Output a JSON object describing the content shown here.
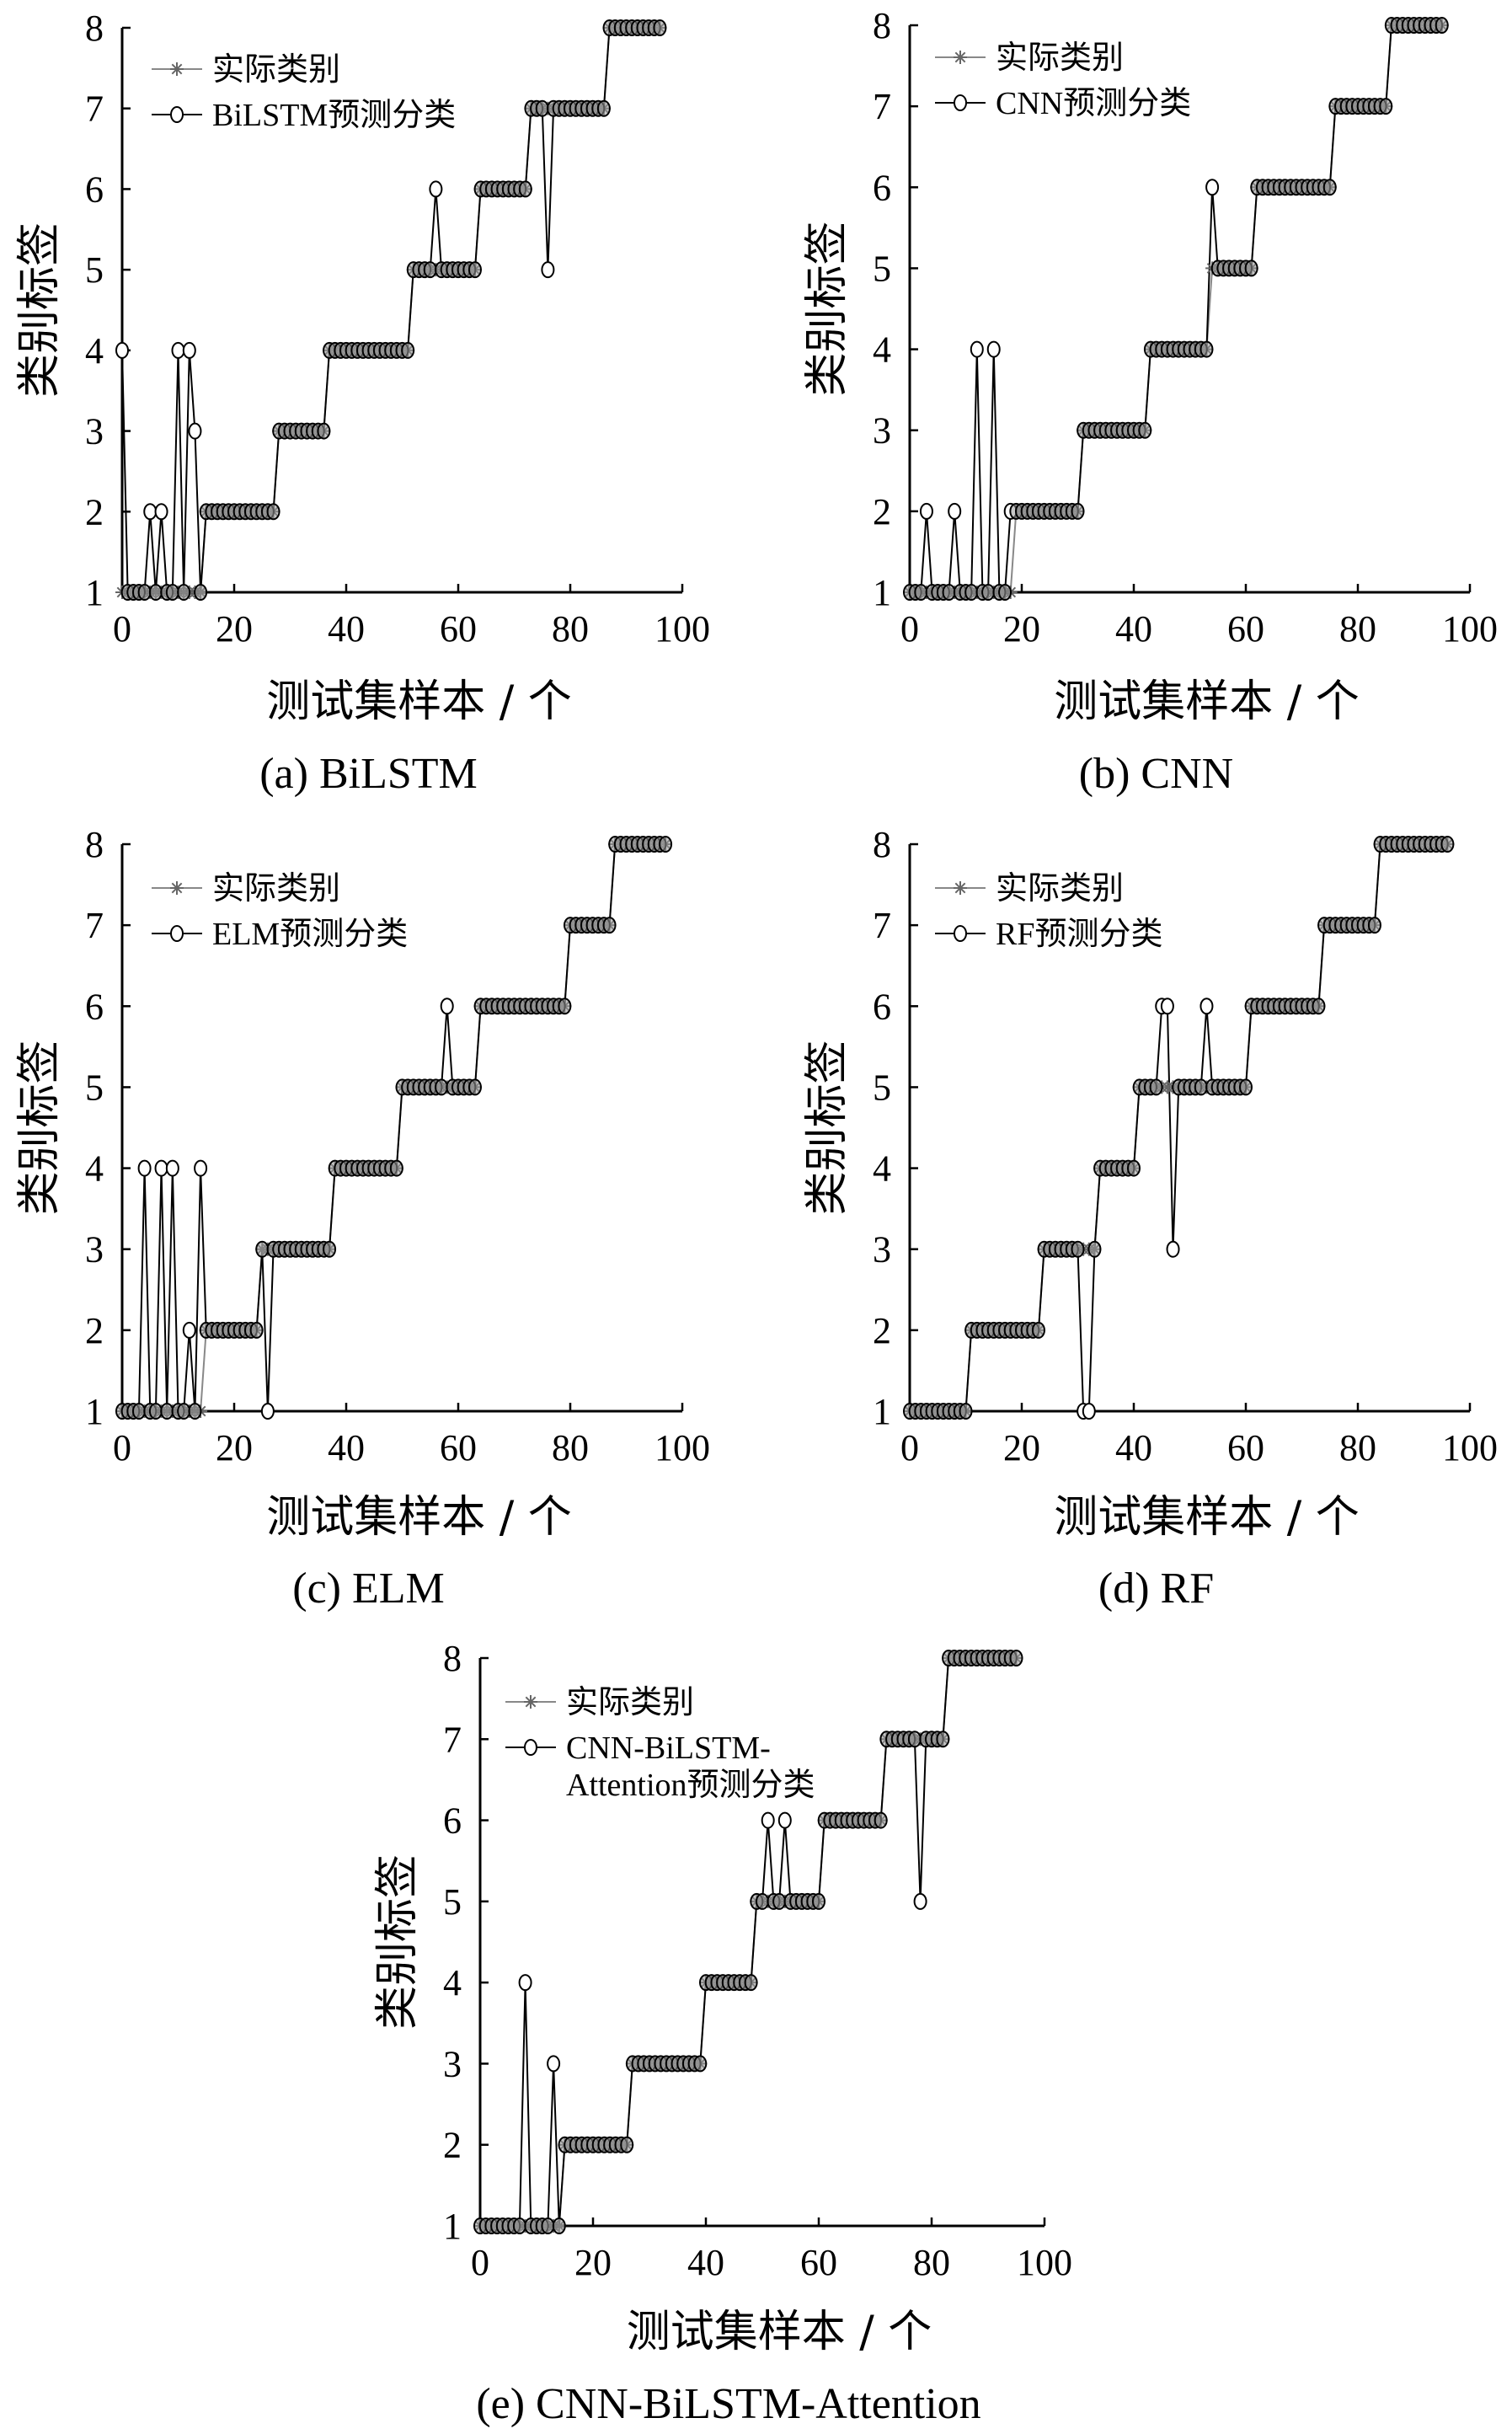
{
  "figure": {
    "xlabel": "测试集样本 / 个",
    "ylabel": "类别标签",
    "legend_actual": "实际类别",
    "captions": [
      "(a)  BiLSTM",
      "(b)  CNN",
      "(c)  ELM",
      "(d)  RF",
      "(e)  CNN-BiLSTM-Attention"
    ]
  },
  "chart_data": [
    {
      "type": "line",
      "caption": "(a)  BiLSTM",
      "xlabel": "测试集样本 / 个",
      "ylabel": "类别标签",
      "xlim": [
        0,
        100
      ],
      "ylim": [
        1,
        8
      ],
      "xticks": [
        0,
        20,
        40,
        60,
        80,
        100
      ],
      "yticks": [
        1,
        2,
        3,
        4,
        5,
        6,
        7,
        8
      ],
      "grid": false,
      "legend_position": "top-left",
      "actual_counts": [
        15,
        13,
        9,
        15,
        12,
        9,
        14,
        10
      ],
      "series": [
        {
          "name": "实际类别",
          "marker": "asterisk",
          "color": "#888888"
        },
        {
          "name": "BiLSTM预测分类",
          "marker": "circle",
          "color": "#000000",
          "mismatches": [
            [
              0,
              4
            ],
            [
              5,
              2
            ],
            [
              7,
              2
            ],
            [
              10,
              4
            ],
            [
              12,
              4
            ],
            [
              13,
              3
            ],
            [
              56,
              6
            ],
            [
              76,
              5
            ]
          ]
        }
      ]
    },
    {
      "type": "line",
      "caption": "(b)  CNN",
      "xlabel": "测试集样本 / 个",
      "ylabel": "类别标签",
      "xlim": [
        0,
        100
      ],
      "ylim": [
        1,
        8
      ],
      "xticks": [
        0,
        20,
        40,
        60,
        80,
        100
      ],
      "yticks": [
        1,
        2,
        3,
        4,
        5,
        6,
        7,
        8
      ],
      "grid": false,
      "legend_position": "top-left",
      "actual_counts": [
        19,
        12,
        12,
        11,
        8,
        14,
        10,
        10
      ],
      "series": [
        {
          "name": "实际类别",
          "marker": "asterisk",
          "color": "#888888"
        },
        {
          "name": "CNN预测分类",
          "marker": "circle",
          "color": "#000000",
          "mismatches": [
            [
              3,
              2
            ],
            [
              8,
              2
            ],
            [
              12,
              4
            ],
            [
              15,
              4
            ],
            [
              18,
              2
            ],
            [
              54,
              6
            ]
          ]
        }
      ]
    },
    {
      "type": "line",
      "caption": "(c)  ELM",
      "xlabel": "测试集样本 / 个",
      "ylabel": "类别标签",
      "xlim": [
        0,
        100
      ],
      "ylim": [
        1,
        8
      ],
      "xticks": [
        0,
        20,
        40,
        60,
        80,
        100
      ],
      "yticks": [
        1,
        2,
        3,
        4,
        5,
        6,
        7,
        8
      ],
      "grid": false,
      "legend_position": "top-left",
      "actual_counts": [
        15,
        10,
        13,
        12,
        14,
        16,
        8,
        10
      ],
      "series": [
        {
          "name": "实际类别",
          "marker": "asterisk",
          "color": "#888888"
        },
        {
          "name": "ELM预测分类",
          "marker": "circle",
          "color": "#000000",
          "mismatches": [
            [
              4,
              4
            ],
            [
              7,
              4
            ],
            [
              9,
              4
            ],
            [
              12,
              2
            ],
            [
              14,
              4
            ],
            [
              25,
              3
            ],
            [
              26,
              1
            ],
            [
              58,
              6
            ]
          ]
        }
      ]
    },
    {
      "type": "line",
      "caption": "(d)  RF",
      "xlabel": "测试集样本 / 个",
      "ylabel": "类别标签",
      "xlim": [
        0,
        100
      ],
      "ylim": [
        1,
        8
      ],
      "xticks": [
        0,
        20,
        40,
        60,
        80,
        100
      ],
      "yticks": [
        1,
        2,
        3,
        4,
        5,
        6,
        7,
        8
      ],
      "grid": false,
      "legend_position": "top-left",
      "actual_counts": [
        11,
        13,
        10,
        7,
        20,
        13,
        10,
        13
      ],
      "series": [
        {
          "name": "实际类别",
          "marker": "asterisk",
          "color": "#888888"
        },
        {
          "name": "RF预测分类",
          "marker": "circle",
          "color": "#000000",
          "mismatches": [
            [
              31,
              1
            ],
            [
              32,
              1
            ],
            [
              33,
              3
            ],
            [
              45,
              6
            ],
            [
              46,
              6
            ],
            [
              47,
              3
            ],
            [
              53,
              6
            ]
          ]
        }
      ]
    },
    {
      "type": "line",
      "caption": "(e)  CNN-BiLSTM-Attention",
      "xlabel": "测试集样本 / 个",
      "ylabel": "类别标签",
      "xlim": [
        0,
        100
      ],
      "ylim": [
        1,
        8
      ],
      "xticks": [
        0,
        20,
        40,
        60,
        80,
        100
      ],
      "yticks": [
        1,
        2,
        3,
        4,
        5,
        6,
        7,
        8
      ],
      "grid": false,
      "legend_position": "top-left",
      "actual_counts": [
        15,
        12,
        13,
        9,
        12,
        11,
        11,
        13
      ],
      "series": [
        {
          "name": "实际类别",
          "marker": "asterisk",
          "color": "#888888"
        },
        {
          "name": "CNN-BiLSTM-Attention预测分类",
          "marker": "circle",
          "color": "#000000",
          "mismatches": [
            [
              8,
              4
            ],
            [
              13,
              3
            ],
            [
              51,
              6
            ],
            [
              54,
              6
            ],
            [
              78,
              5
            ]
          ]
        }
      ]
    }
  ]
}
